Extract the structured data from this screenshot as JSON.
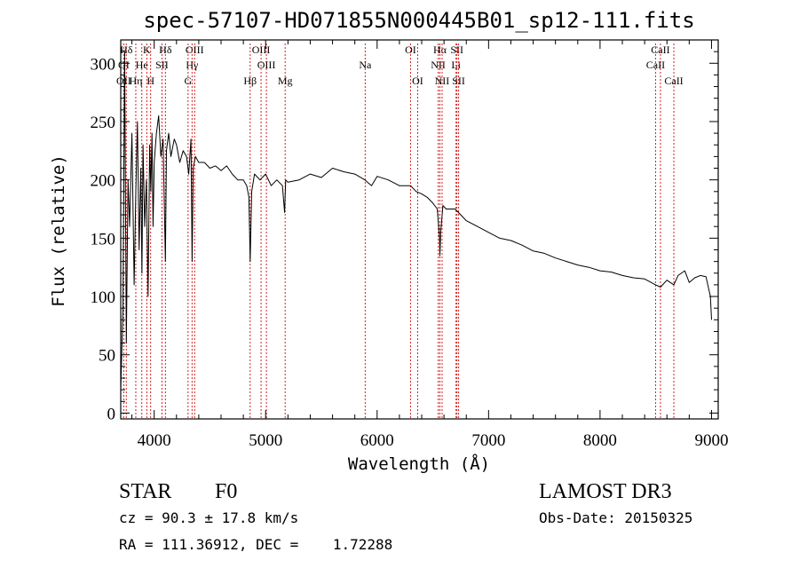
{
  "chart_data": {
    "type": "line",
    "title": "spec-57107-HD071855N000445B01_sp12-111.fits",
    "xlabel": "Wavelength (Å)",
    "ylabel": "Flux (relative)",
    "xlim": [
      3700,
      9060
    ],
    "ylim": [
      -5,
      320
    ],
    "xticks": [
      4000,
      5000,
      6000,
      7000,
      8000,
      9000
    ],
    "yticks": [
      0,
      50,
      100,
      150,
      200,
      250,
      300
    ],
    "series": [
      {
        "name": "flux",
        "x": [
          3700,
          3720,
          3735,
          3750,
          3765,
          3780,
          3800,
          3820,
          3835,
          3850,
          3865,
          3880,
          3890,
          3900,
          3915,
          3930,
          3945,
          3960,
          3970,
          3980,
          3990,
          4000,
          4020,
          4040,
          4060,
          4080,
          4101,
          4110,
          4130,
          4150,
          4180,
          4200,
          4230,
          4260,
          4290,
          4310,
          4330,
          4340,
          4350,
          4370,
          4400,
          4450,
          4500,
          4550,
          4600,
          4650,
          4700,
          4750,
          4800,
          4830,
          4850,
          4861,
          4875,
          4900,
          4950,
          5000,
          5050,
          5100,
          5150,
          5170,
          5180,
          5200,
          5300,
          5400,
          5500,
          5600,
          5700,
          5800,
          5890,
          5950,
          6000,
          6100,
          6200,
          6300,
          6350,
          6400,
          6450,
          6500,
          6540,
          6560,
          6563,
          6570,
          6590,
          6620,
          6700,
          6800,
          6900,
          7000,
          7100,
          7200,
          7300,
          7400,
          7500,
          7600,
          7700,
          7800,
          7900,
          8000,
          8100,
          8200,
          8300,
          8400,
          8498,
          8542,
          8600,
          8662,
          8700,
          8760,
          8800,
          8850,
          8900,
          8950,
          8990,
          9000
        ],
        "values": [
          20,
          90,
          310,
          60,
          200,
          160,
          240,
          110,
          190,
          250,
          140,
          210,
          120,
          230,
          160,
          200,
          100,
          230,
          190,
          240,
          160,
          215,
          240,
          255,
          220,
          235,
          130,
          225,
          240,
          220,
          235,
          230,
          215,
          225,
          220,
          205,
          235,
          130,
          210,
          220,
          215,
          215,
          210,
          212,
          208,
          212,
          205,
          200,
          200,
          195,
          185,
          130,
          190,
          205,
          200,
          205,
          195,
          200,
          195,
          172,
          200,
          198,
          200,
          205,
          202,
          210,
          207,
          205,
          200,
          195,
          203,
          200,
          195,
          195,
          190,
          188,
          185,
          180,
          175,
          150,
          135,
          155,
          178,
          175,
          175,
          165,
          160,
          155,
          150,
          148,
          144,
          139,
          137,
          133,
          130,
          127,
          125,
          122,
          121,
          118,
          116,
          115,
          110,
          108,
          114,
          110,
          118,
          122,
          112,
          116,
          118,
          117,
          100,
          80
        ]
      }
    ],
    "lines": [
      {
        "label": "Hδ",
        "wave": 3750,
        "row": 0
      },
      {
        "label": "K",
        "wave": 3934,
        "row": 0
      },
      {
        "label": "Hδ",
        "wave": 4101,
        "row": 0
      },
      {
        "label": "OIII",
        "wave": 4363,
        "row": 0
      },
      {
        "label": "OIII",
        "wave": 4959,
        "row": 0
      },
      {
        "label": "OI",
        "wave": 6300,
        "row": 0
      },
      {
        "label": "Hα",
        "wave": 6563,
        "row": 0
      },
      {
        "label": "SII",
        "wave": 6716,
        "row": 0
      },
      {
        "label": "CaII",
        "wave": 8542,
        "row": 0
      },
      {
        "label": "OI",
        "wave": 3727,
        "row": 1
      },
      {
        "label": "He",
        "wave": 3889,
        "row": 1
      },
      {
        "label": "SII",
        "wave": 4070,
        "row": 1
      },
      {
        "label": "Hγ",
        "wave": 4340,
        "row": 1
      },
      {
        "label": "OIII",
        "wave": 5007,
        "row": 1
      },
      {
        "label": "Na",
        "wave": 5893,
        "row": 1
      },
      {
        "label": "NII",
        "wave": 6548,
        "row": 1
      },
      {
        "label": "Li",
        "wave": 6708,
        "row": 1
      },
      {
        "label": "CaII",
        "wave": 8498,
        "row": 1
      },
      {
        "label": "OII",
        "wave": 3727,
        "row": 2
      },
      {
        "label": "Hη",
        "wave": 3835,
        "row": 2
      },
      {
        "label": "H",
        "wave": 3968,
        "row": 2
      },
      {
        "label": "G",
        "wave": 4304,
        "row": 2
      },
      {
        "label": "Hβ",
        "wave": 4861,
        "row": 2
      },
      {
        "label": "Mg",
        "wave": 5175,
        "row": 2
      },
      {
        "label": "OI",
        "wave": 6364,
        "row": 2
      },
      {
        "label": "NII",
        "wave": 6583,
        "row": 2
      },
      {
        "label": "SII",
        "wave": 6731,
        "row": 2
      },
      {
        "label": "CaII",
        "wave": 8662,
        "row": 2
      }
    ]
  },
  "info": {
    "object_type": "STAR",
    "subclass": "F0",
    "survey": "LAMOST DR3",
    "cz": "cz = 90.3 ± 17.8 km/s",
    "obs_date": "Obs-Date: 20150325",
    "coords": "RA = 111.36912, DEC =    1.72288"
  }
}
